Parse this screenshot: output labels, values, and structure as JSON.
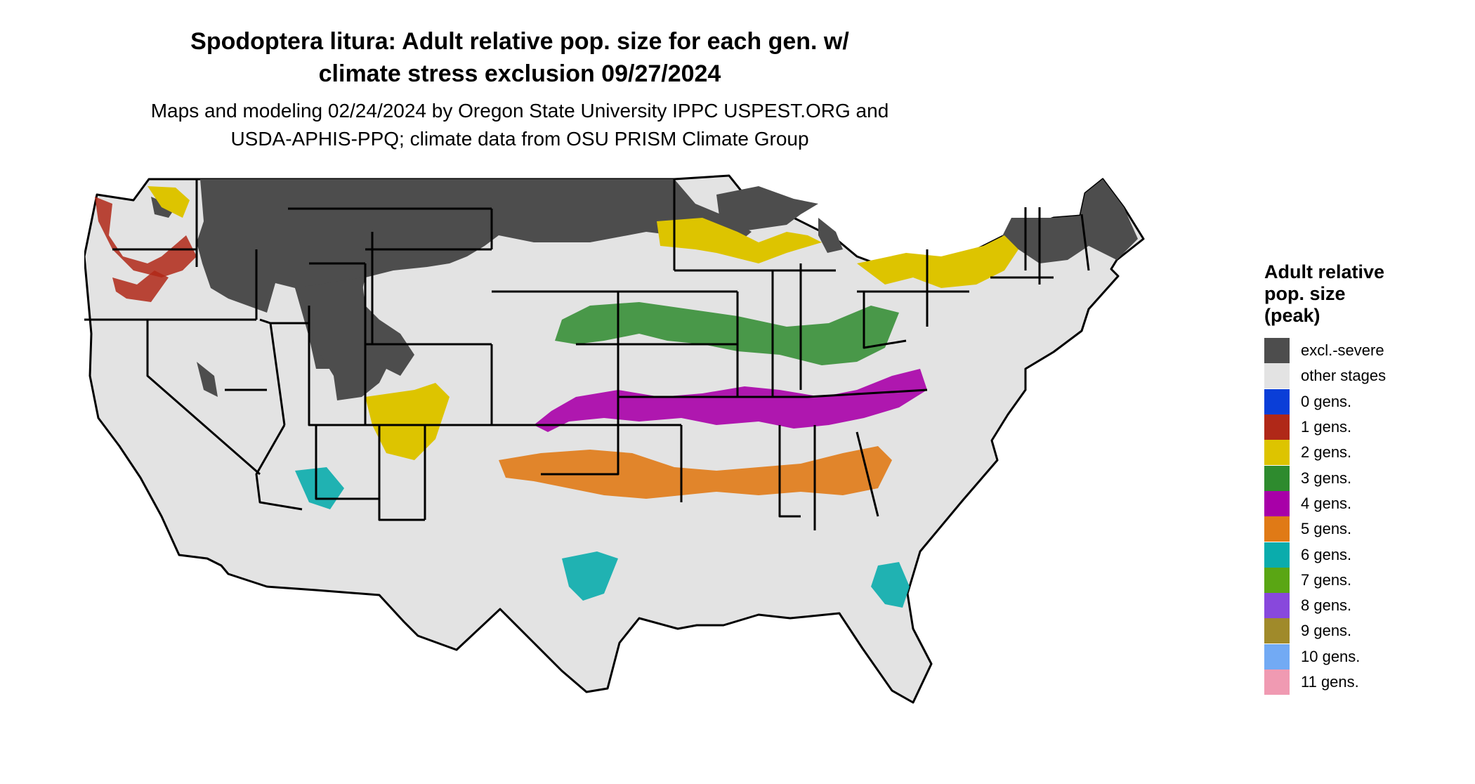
{
  "title": {
    "line1": "Spodoptera litura: Adult relative pop. size for each gen. w/",
    "line2": "climate stress exclusion 09/27/2024"
  },
  "subtitle": {
    "line1": "Maps and modeling 02/24/2024 by Oregon State University IPPC USPEST.ORG and",
    "line2": "USDA-APHIS-PPQ; climate data from OSU PRISM Climate Group"
  },
  "legend": {
    "title_lines": [
      "Adult relative",
      "pop. size",
      "(peak)"
    ],
    "items": [
      {
        "label": "excl.-severe",
        "color": "#4d4d4d"
      },
      {
        "label": "other stages",
        "color": "#e3e3e3"
      },
      {
        "label": "0 gens.",
        "color": "#0a3ed8"
      },
      {
        "label": "1 gens.",
        "color": "#b02818"
      },
      {
        "label": "2 gens.",
        "color": "#ddc400"
      },
      {
        "label": "3 gens.",
        "color": "#2e8b2e"
      },
      {
        "label": "4 gens.",
        "color": "#a800a8"
      },
      {
        "label": "5 gens.",
        "color": "#e07a16"
      },
      {
        "label": "6 gens.",
        "color": "#0aacac"
      },
      {
        "label": "7 gens.",
        "color": "#5aa614"
      },
      {
        "label": "8 gens.",
        "color": "#8848dc"
      },
      {
        "label": "9 gens.",
        "color": "#a08a2a"
      },
      {
        "label": "10 gens.",
        "color": "#72aaf4"
      },
      {
        "label": "11 gens.",
        "color": "#f09ab2"
      }
    ]
  }
}
